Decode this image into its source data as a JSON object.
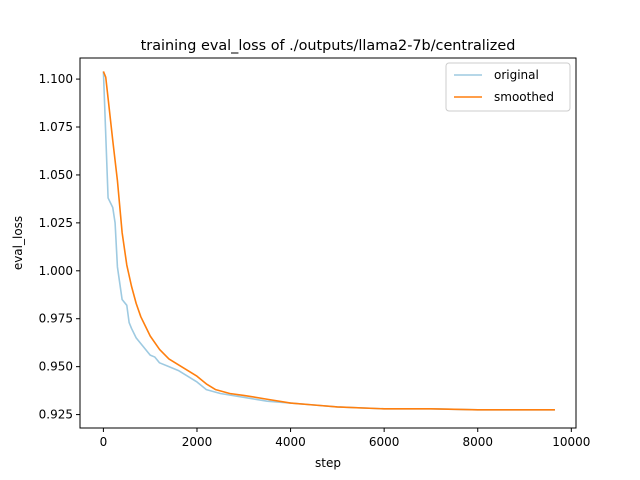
{
  "chart_data": {
    "type": "line",
    "title": "training eval_loss of ./outputs/llama2-7b/centralized",
    "xlabel": "step",
    "ylabel": "eval_loss",
    "xlim": [
      -500,
      10100
    ],
    "ylim": [
      0.918,
      1.111
    ],
    "xticks": [
      0,
      2000,
      4000,
      6000,
      8000,
      10000
    ],
    "xtick_labels": [
      "0",
      "2000",
      "4000",
      "6000",
      "8000",
      "10000"
    ],
    "yticks": [
      0.925,
      0.95,
      0.975,
      1.0,
      1.025,
      1.05,
      1.075,
      1.1
    ],
    "ytick_labels": [
      "0.925",
      "0.950",
      "0.975",
      "1.000",
      "1.025",
      "1.050",
      "1.075",
      "1.100"
    ],
    "grid": false,
    "legend_position": "top-right",
    "colors": {
      "original": "#9ecae1",
      "smoothed": "#ff7f0e"
    },
    "series": [
      {
        "name": "original",
        "x": [
          0,
          100,
          200,
          250,
          300,
          400,
          500,
          550,
          600,
          700,
          800,
          900,
          1000,
          1100,
          1200,
          1400,
          1600,
          1800,
          2000,
          2200,
          2500,
          3000,
          3500,
          4000,
          4500,
          5000,
          6000,
          7000,
          8000,
          9000,
          9650
        ],
        "y": [
          1.104,
          1.038,
          1.033,
          1.025,
          1.002,
          0.985,
          0.982,
          0.973,
          0.97,
          0.965,
          0.962,
          0.959,
          0.956,
          0.955,
          0.952,
          0.95,
          0.948,
          0.945,
          0.942,
          0.938,
          0.936,
          0.934,
          0.932,
          0.931,
          0.93,
          0.929,
          0.928,
          0.928,
          0.9275,
          0.9275,
          0.9275
        ]
      },
      {
        "name": "smoothed",
        "x": [
          0,
          50,
          100,
          200,
          300,
          400,
          500,
          600,
          700,
          800,
          900,
          1000,
          1200,
          1400,
          1600,
          1800,
          2000,
          2200,
          2400,
          2700,
          3000,
          3500,
          4000,
          4500,
          5000,
          6000,
          7000,
          8000,
          9000,
          9650
        ],
        "y": [
          1.104,
          1.101,
          1.09,
          1.068,
          1.047,
          1.02,
          1.003,
          0.992,
          0.983,
          0.976,
          0.971,
          0.966,
          0.959,
          0.954,
          0.951,
          0.948,
          0.945,
          0.941,
          0.938,
          0.936,
          0.935,
          0.933,
          0.931,
          0.93,
          0.929,
          0.928,
          0.928,
          0.9275,
          0.9275,
          0.9275
        ]
      }
    ]
  }
}
